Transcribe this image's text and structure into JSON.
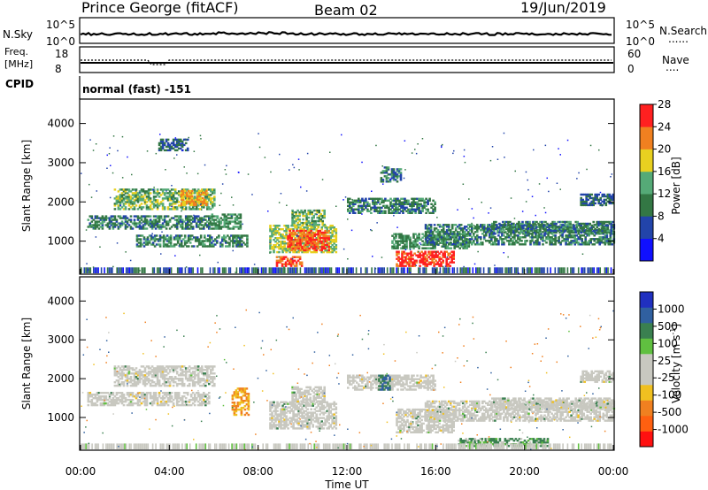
{
  "header": {
    "station": "Prince George (fitACF)",
    "beam": "Beam 02",
    "date": "19/Jun/2019"
  },
  "sky_panel": {
    "left_label": "N.Sky",
    "left_ticks": [
      "10^5",
      "10^0"
    ],
    "right_label": "N.Search",
    "right_ticks": [
      "10^5",
      "10^0"
    ]
  },
  "freq_panel": {
    "left_label_line1": "Freq.",
    "left_label_line2": "[MHz]",
    "left_ticks": [
      "18",
      "8"
    ],
    "right_label": "Nave",
    "right_ticks": [
      "60",
      "0"
    ]
  },
  "cpid_panel": {
    "label": "CPID",
    "mode": "normal (fast) -151"
  },
  "chart_data": [
    {
      "type": "heatmap",
      "name": "power",
      "ylabel": "Slant Range [km]",
      "xlabel": "Time UT",
      "x_ticks": [
        "00:00",
        "04:00",
        "08:00",
        "12:00",
        "16:00",
        "20:00",
        "00:00"
      ],
      "y_ticks": [
        1000,
        2000,
        3000,
        4000
      ],
      "ylim": [
        180,
        4600
      ],
      "xlim_hours": [
        0,
        24
      ],
      "colorbar": {
        "label": "Power [dB]",
        "ticks": [
          4,
          8,
          12,
          16,
          20,
          24,
          28
        ],
        "colors": [
          "#1010ff",
          "#2244aa",
          "#337744",
          "#55aa77",
          "#e8d020",
          "#f08020",
          "#ff2020"
        ]
      },
      "echo_regions": [
        {
          "t0": 0.3,
          "t1": 5.8,
          "r0": 1300,
          "r1": 1650,
          "power": 12
        },
        {
          "t0": 1.5,
          "t1": 6.0,
          "r0": 1800,
          "r1": 2300,
          "power": 16
        },
        {
          "t0": 4.5,
          "t1": 5.7,
          "r0": 1900,
          "r1": 2300,
          "power": 22
        },
        {
          "t0": 2.5,
          "t1": 7.5,
          "r0": 850,
          "r1": 1150,
          "power": 12
        },
        {
          "t0": 5.8,
          "t1": 7.2,
          "r0": 1300,
          "r1": 1700,
          "power": 14
        },
        {
          "t0": 8.5,
          "t1": 11.5,
          "r0": 700,
          "r1": 1400,
          "power": 18
        },
        {
          "t0": 9.3,
          "t1": 11.2,
          "r0": 750,
          "r1": 1250,
          "power": 26
        },
        {
          "t0": 8.8,
          "t1": 10.0,
          "r0": 350,
          "r1": 600,
          "power": 26
        },
        {
          "t0": 9.5,
          "t1": 11.0,
          "r0": 1400,
          "r1": 1800,
          "power": 16
        },
        {
          "t0": 12.0,
          "t1": 16.0,
          "r0": 1700,
          "r1": 2100,
          "power": 12
        },
        {
          "t0": 13.5,
          "t1": 14.4,
          "r0": 2500,
          "r1": 2900,
          "power": 12
        },
        {
          "t0": 14.2,
          "t1": 16.8,
          "r0": 350,
          "r1": 750,
          "power": 28
        },
        {
          "t0": 14.0,
          "t1": 17.5,
          "r0": 800,
          "r1": 1200,
          "power": 14
        },
        {
          "t0": 15.5,
          "t1": 24.0,
          "r0": 900,
          "r1": 1400,
          "power": 12
        },
        {
          "t0": 18.5,
          "t1": 24.0,
          "r0": 1200,
          "r1": 1500,
          "power": 12
        },
        {
          "t0": 22.5,
          "t1": 24.0,
          "r0": 1900,
          "r1": 2200,
          "power": 10
        },
        {
          "t0": 3.5,
          "t1": 4.8,
          "r0": 3300,
          "r1": 3600,
          "power": 10
        }
      ]
    },
    {
      "type": "heatmap",
      "name": "velocity",
      "ylabel": "Slant Range [km]",
      "xlabel": "Time UT",
      "x_ticks": [
        "00:00",
        "04:00",
        "08:00",
        "12:00",
        "16:00",
        "20:00",
        "00:00"
      ],
      "y_ticks": [
        1000,
        2000,
        3000,
        4000
      ],
      "ylim": [
        180,
        4600
      ],
      "xlim_hours": [
        0,
        24
      ],
      "colorbar": {
        "label_main": "Velocity",
        "label_unit": "[m s",
        "label_exp": "-1",
        "label_close": "]",
        "ticks": [
          "1000",
          "500",
          "100",
          "25",
          "-25",
          "-100",
          "-500",
          "-1000"
        ],
        "colors": [
          "#2030c0",
          "#3060a0",
          "#3a8050",
          "#60c040",
          "#c8c8c0",
          "#c8c8c0",
          "#f0c020",
          "#f08020",
          "#ff6010",
          "#ff1010"
        ]
      },
      "echo_regions": [
        {
          "t0": 0.3,
          "t1": 5.8,
          "r0": 1300,
          "r1": 1650,
          "velocity": 0
        },
        {
          "t0": 1.5,
          "t1": 6.0,
          "r0": 1800,
          "r1": 2300,
          "velocity": 0
        },
        {
          "t0": 6.8,
          "t1": 7.6,
          "r0": 1050,
          "r1": 1750,
          "velocity": -300
        },
        {
          "t0": 8.5,
          "t1": 11.5,
          "r0": 700,
          "r1": 1400,
          "velocity": 0
        },
        {
          "t0": 9.5,
          "t1": 11.0,
          "r0": 1400,
          "r1": 1800,
          "velocity": 0
        },
        {
          "t0": 12.0,
          "t1": 16.0,
          "r0": 1700,
          "r1": 2100,
          "velocity": 0
        },
        {
          "t0": 13.4,
          "t1": 13.9,
          "r0": 1700,
          "r1": 2100,
          "velocity": 300
        },
        {
          "t0": 14.2,
          "t1": 16.8,
          "r0": 600,
          "r1": 1200,
          "velocity": 0
        },
        {
          "t0": 15.5,
          "t1": 24.0,
          "r0": 900,
          "r1": 1400,
          "velocity": 0
        },
        {
          "t0": 18.5,
          "t1": 24.0,
          "r0": 1200,
          "r1": 1500,
          "velocity": 0
        },
        {
          "t0": 17.0,
          "t1": 21.0,
          "r0": 250,
          "r1": 450,
          "velocity": 80
        },
        {
          "t0": 22.5,
          "t1": 24.0,
          "r0": 1900,
          "r1": 2200,
          "velocity": 0
        }
      ]
    }
  ]
}
